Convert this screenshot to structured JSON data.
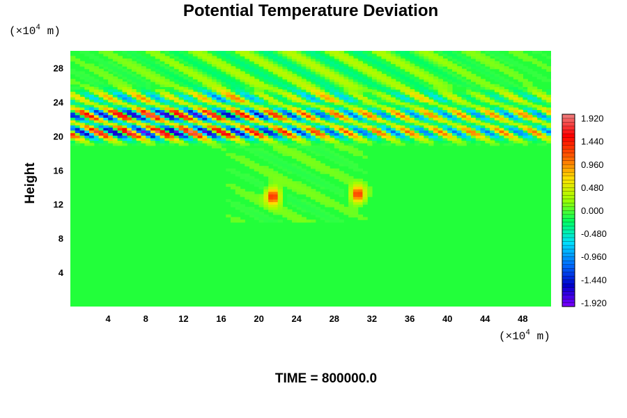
{
  "chart_data": {
    "type": "heatmap",
    "title": "Potential Temperature Deviation",
    "xlabel": "",
    "ylabel": "Height",
    "x_unit": {
      "prefix": "(×10",
      "exp": "4",
      "suffix": " m)"
    },
    "y_unit": {
      "prefix": "(×10",
      "exp": "4",
      "suffix": " m)"
    },
    "xlim": [
      0,
      51
    ],
    "ylim": [
      0,
      30
    ],
    "x_ticks": [
      4,
      8,
      12,
      16,
      20,
      24,
      28,
      32,
      36,
      40,
      44,
      48
    ],
    "y_ticks": [
      4,
      8,
      12,
      16,
      20,
      24,
      28
    ],
    "colorbar": {
      "range": [
        -2.0,
        2.0
      ],
      "ticks": [
        "1.920",
        "1.440",
        "0.960",
        "0.480",
        "0.000",
        "-0.480",
        "-0.960",
        "-1.440",
        "-1.920"
      ],
      "tick_values": [
        1.92,
        1.44,
        0.96,
        0.48,
        0.0,
        -0.48,
        -0.96,
        -1.44,
        -1.92
      ],
      "colormap": [
        "#7f00ff",
        "#0000cc",
        "#0070ff",
        "#00e0ff",
        "#00ff60",
        "#a0ff00",
        "#ffe000",
        "#ff6000",
        "#ff0000",
        "#f08080"
      ]
    },
    "background_value": 0.0,
    "features": [
      {
        "kind": "wave band",
        "y_center": 20.5,
        "amplitude": 2.0
      },
      {
        "kind": "wave band",
        "y_center": 22.5,
        "amplitude": 1.9
      },
      {
        "kind": "wave band",
        "y_center": 24.5,
        "amplitude": 0.9
      },
      {
        "kind": "warm blob",
        "x": 21.5,
        "y": 13.0,
        "value": 1.5
      },
      {
        "kind": "warm blob",
        "x": 30.5,
        "y": 13.2,
        "value": 1.4
      }
    ]
  },
  "time_label": "TIME = 800000.0"
}
